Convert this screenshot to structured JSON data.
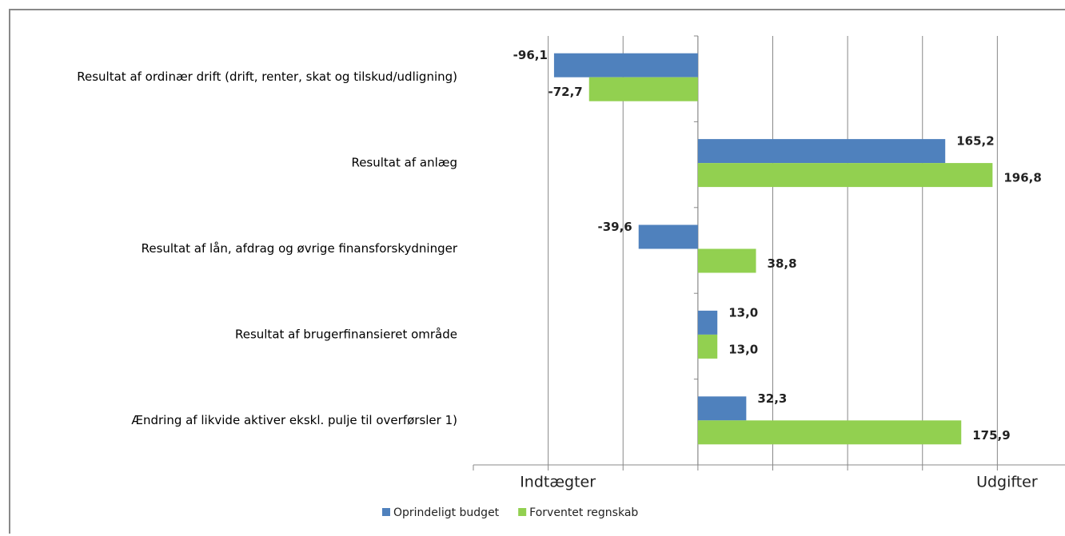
{
  "chart_data": {
    "type": "barh",
    "categories": [
      "Resultat af ordinær drift (drift, renter, skat og tilskud/udligning)",
      "Resultat af anlæg",
      "Resultat af lån, afdrag og øvrige finansforskydninger",
      "Resultat af brugerfinansieret område",
      "Ændring af likvide aktiver ekskl. pulje til overførsler 1)"
    ],
    "series": [
      {
        "name": "Oprindeligt budget",
        "color": "#4f81bd",
        "values": [
          -96.1,
          165.2,
          -39.6,
          13.0,
          32.3
        ],
        "value_labels": [
          "-96,1",
          "165,2",
          "-39,6",
          "13,0",
          "32,3"
        ]
      },
      {
        "name": "Forventet regnskab",
        "color": "#92d050",
        "values": [
          -72.7,
          196.8,
          38.8,
          13.0,
          175.9
        ],
        "value_labels": [
          "-72,7",
          "196,8",
          "38,8",
          "13,0",
          "175,9"
        ]
      }
    ],
    "xlim": [
      -150,
      250
    ],
    "gridlines": [
      -100,
      -50,
      0,
      50,
      100,
      150,
      200
    ],
    "xticks": [
      {
        "value": -100,
        "label": "Indtægter"
      },
      {
        "value": 200,
        "label": "Udgifter"
      }
    ],
    "grid": true,
    "legend": "bottom"
  }
}
